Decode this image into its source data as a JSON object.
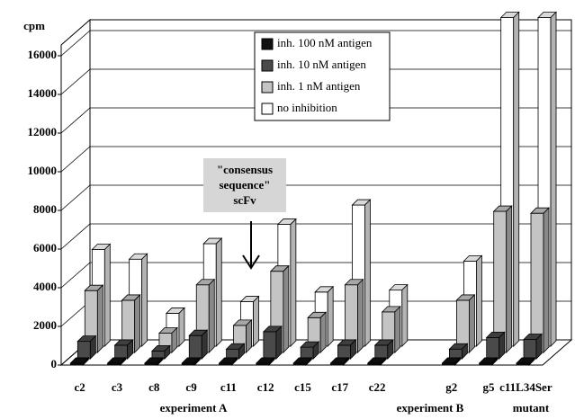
{
  "chart_data": {
    "type": "bar3d",
    "y_label": "cpm",
    "categories": [
      "c2",
      "c3",
      "c8",
      "c9",
      "c11",
      "c12",
      "c15",
      "c17",
      "c22",
      null,
      "g2",
      "g5",
      "c11L34Ser"
    ],
    "group_labels": [
      "experiment A",
      "experiment B",
      "mutant"
    ],
    "annotation": "\"consensus sequence\" scFv",
    "series": [
      {
        "name": "inh. 100 nM antigen",
        "color": "#111111",
        "values": [
          100,
          100,
          100,
          100,
          100,
          100,
          100,
          100,
          100,
          null,
          100,
          100,
          100
        ]
      },
      {
        "name": "inh. 10 nM antigen",
        "color": "#4a4a4a",
        "values": [
          900,
          700,
          400,
          1200,
          500,
          1400,
          600,
          700,
          700,
          null,
          500,
          1100,
          1000
        ]
      },
      {
        "name": "inh. 1 nM antigen",
        "color": "#c4c4c4",
        "values": [
          3200,
          2700,
          1000,
          3500,
          1400,
          4200,
          1800,
          3500,
          2100,
          null,
          2700,
          7300,
          7200
        ]
      },
      {
        "name": "no inhibition",
        "color": "#ffffff",
        "values": [
          5000,
          4500,
          1700,
          5300,
          2300,
          6300,
          2800,
          7300,
          2900,
          null,
          4400,
          17000,
          17000
        ]
      }
    ],
    "ylim": [
      0,
      16000
    ],
    "yticks": [
      0,
      2000,
      4000,
      6000,
      8000,
      10000,
      12000,
      14000,
      16000
    ],
    "legend": "top-center",
    "grid": true
  }
}
